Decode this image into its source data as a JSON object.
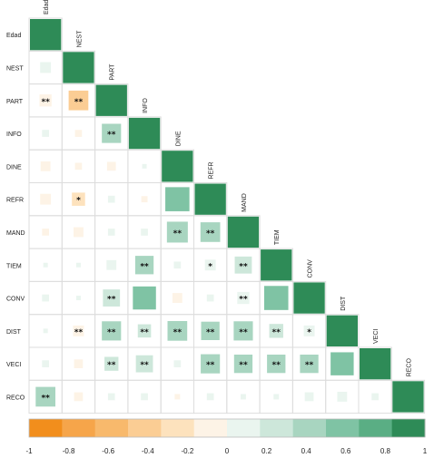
{
  "chart_data": {
    "type": "heatmap",
    "variables": [
      "Edad",
      "NEST",
      "PART",
      "INFO",
      "DINE",
      "REFR",
      "MAND",
      "TIEM",
      "CONV",
      "DIST",
      "VECI",
      "RECO"
    ],
    "correlations": [
      {
        "row": "NEST",
        "col": "Edad",
        "value": 0.12,
        "sig": ""
      },
      {
        "row": "PART",
        "col": "Edad",
        "value": -0.15,
        "sig": "**"
      },
      {
        "row": "PART",
        "col": "NEST",
        "value": -0.4,
        "sig": "**"
      },
      {
        "row": "INFO",
        "col": "Edad",
        "value": 0.05,
        "sig": ""
      },
      {
        "row": "INFO",
        "col": "NEST",
        "value": -0.05,
        "sig": ""
      },
      {
        "row": "INFO",
        "col": "PART",
        "value": 0.38,
        "sig": "**"
      },
      {
        "row": "DINE",
        "col": "Edad",
        "value": -0.1,
        "sig": ""
      },
      {
        "row": "DINE",
        "col": "NEST",
        "value": -0.05,
        "sig": ""
      },
      {
        "row": "DINE",
        "col": "PART",
        "value": -0.08,
        "sig": ""
      },
      {
        "row": "DINE",
        "col": "INFO",
        "value": 0.02,
        "sig": ""
      },
      {
        "row": "REFR",
        "col": "Edad",
        "value": -0.12,
        "sig": ""
      },
      {
        "row": "REFR",
        "col": "NEST",
        "value": -0.18,
        "sig": "*"
      },
      {
        "row": "REFR",
        "col": "PART",
        "value": 0.05,
        "sig": ""
      },
      {
        "row": "REFR",
        "col": "INFO",
        "value": -0.04,
        "sig": ""
      },
      {
        "row": "REFR",
        "col": "DINE",
        "value": 0.6,
        "sig": ""
      },
      {
        "row": "MAND",
        "col": "Edad",
        "value": -0.05,
        "sig": ""
      },
      {
        "row": "MAND",
        "col": "NEST",
        "value": -0.1,
        "sig": ""
      },
      {
        "row": "MAND",
        "col": "PART",
        "value": 0.05,
        "sig": ""
      },
      {
        "row": "MAND",
        "col": "INFO",
        "value": 0.05,
        "sig": ""
      },
      {
        "row": "MAND",
        "col": "DINE",
        "value": 0.45,
        "sig": "**"
      },
      {
        "row": "MAND",
        "col": "REFR",
        "value": 0.4,
        "sig": "**"
      },
      {
        "row": "TIEM",
        "col": "Edad",
        "value": 0.02,
        "sig": ""
      },
      {
        "row": "TIEM",
        "col": "NEST",
        "value": 0.01,
        "sig": ""
      },
      {
        "row": "TIEM",
        "col": "PART",
        "value": 0.1,
        "sig": ""
      },
      {
        "row": "TIEM",
        "col": "INFO",
        "value": 0.35,
        "sig": "**"
      },
      {
        "row": "TIEM",
        "col": "DINE",
        "value": 0.05,
        "sig": ""
      },
      {
        "row": "TIEM",
        "col": "REFR",
        "value": 0.12,
        "sig": "*"
      },
      {
        "row": "TIEM",
        "col": "MAND",
        "value": 0.3,
        "sig": "**"
      },
      {
        "row": "CONV",
        "col": "Edad",
        "value": 0.05,
        "sig": ""
      },
      {
        "row": "CONV",
        "col": "NEST",
        "value": 0.01,
        "sig": ""
      },
      {
        "row": "CONV",
        "col": "PART",
        "value": 0.3,
        "sig": "**"
      },
      {
        "row": "CONV",
        "col": "INFO",
        "value": 0.55,
        "sig": ""
      },
      {
        "row": "CONV",
        "col": "DINE",
        "value": -0.1,
        "sig": ""
      },
      {
        "row": "CONV",
        "col": "REFR",
        "value": 0.05,
        "sig": ""
      },
      {
        "row": "CONV",
        "col": "MAND",
        "value": 0.15,
        "sig": "**"
      },
      {
        "row": "CONV",
        "col": "TIEM",
        "value": 0.6,
        "sig": ""
      },
      {
        "row": "DIST",
        "col": "Edad",
        "value": 0.01,
        "sig": ""
      },
      {
        "row": "DIST",
        "col": "NEST",
        "value": -0.12,
        "sig": "**"
      },
      {
        "row": "DIST",
        "col": "PART",
        "value": 0.38,
        "sig": "**"
      },
      {
        "row": "DIST",
        "col": "INFO",
        "value": 0.18,
        "sig": "**"
      },
      {
        "row": "DIST",
        "col": "DINE",
        "value": 0.4,
        "sig": "**"
      },
      {
        "row": "DIST",
        "col": "REFR",
        "value": 0.35,
        "sig": "**"
      },
      {
        "row": "DIST",
        "col": "MAND",
        "value": 0.38,
        "sig": "**"
      },
      {
        "row": "DIST",
        "col": "TIEM",
        "value": 0.2,
        "sig": "**"
      },
      {
        "row": "DIST",
        "col": "CONV",
        "value": 0.12,
        "sig": "*"
      },
      {
        "row": "VECI",
        "col": "Edad",
        "value": 0.05,
        "sig": ""
      },
      {
        "row": "VECI",
        "col": "NEST",
        "value": -0.08,
        "sig": ""
      },
      {
        "row": "VECI",
        "col": "PART",
        "value": 0.2,
        "sig": "**"
      },
      {
        "row": "VECI",
        "col": "INFO",
        "value": 0.3,
        "sig": "**"
      },
      {
        "row": "VECI",
        "col": "DINE",
        "value": 0.05,
        "sig": ""
      },
      {
        "row": "VECI",
        "col": "REFR",
        "value": 0.38,
        "sig": "**"
      },
      {
        "row": "VECI",
        "col": "MAND",
        "value": 0.35,
        "sig": "**"
      },
      {
        "row": "VECI",
        "col": "TIEM",
        "value": 0.35,
        "sig": "**"
      },
      {
        "row": "VECI",
        "col": "CONV",
        "value": 0.35,
        "sig": "**"
      },
      {
        "row": "VECI",
        "col": "DIST",
        "value": 0.55,
        "sig": ""
      },
      {
        "row": "RECO",
        "col": "Edad",
        "value": 0.4,
        "sig": "**"
      },
      {
        "row": "RECO",
        "col": "NEST",
        "value": -0.08,
        "sig": ""
      },
      {
        "row": "RECO",
        "col": "PART",
        "value": 0.05,
        "sig": ""
      },
      {
        "row": "RECO",
        "col": "INFO",
        "value": 0.05,
        "sig": ""
      },
      {
        "row": "RECO",
        "col": "DINE",
        "value": -0.03,
        "sig": ""
      },
      {
        "row": "RECO",
        "col": "REFR",
        "value": 0.05,
        "sig": ""
      },
      {
        "row": "RECO",
        "col": "MAND",
        "value": 0.03,
        "sig": ""
      },
      {
        "row": "RECO",
        "col": "TIEM",
        "value": 0.03,
        "sig": ""
      },
      {
        "row": "RECO",
        "col": "CONV",
        "value": 0.08,
        "sig": ""
      },
      {
        "row": "RECO",
        "col": "DIST",
        "value": 0.1,
        "sig": ""
      },
      {
        "row": "RECO",
        "col": "VECI",
        "value": 0.05,
        "sig": ""
      }
    ],
    "diagonal_value": 1,
    "colorbar": {
      "ticks": [
        "-1",
        "-0.8",
        "-0.6",
        "-0.4",
        "-0.2",
        "0",
        "0.2",
        "0.4",
        "0.6",
        "0.8",
        "1"
      ],
      "range": [
        -1,
        1
      ],
      "colors": [
        "#f28e1c",
        "#f6a54a",
        "#f8b96c",
        "#fbcd94",
        "#fde2bd",
        "#fdf3e6",
        "#eaf5ef",
        "#cde7da",
        "#a8d5c0",
        "#7fc3a4",
        "#5aae84",
        "#2e8b57"
      ]
    },
    "title": "",
    "xlabel": "",
    "ylabel": ""
  }
}
